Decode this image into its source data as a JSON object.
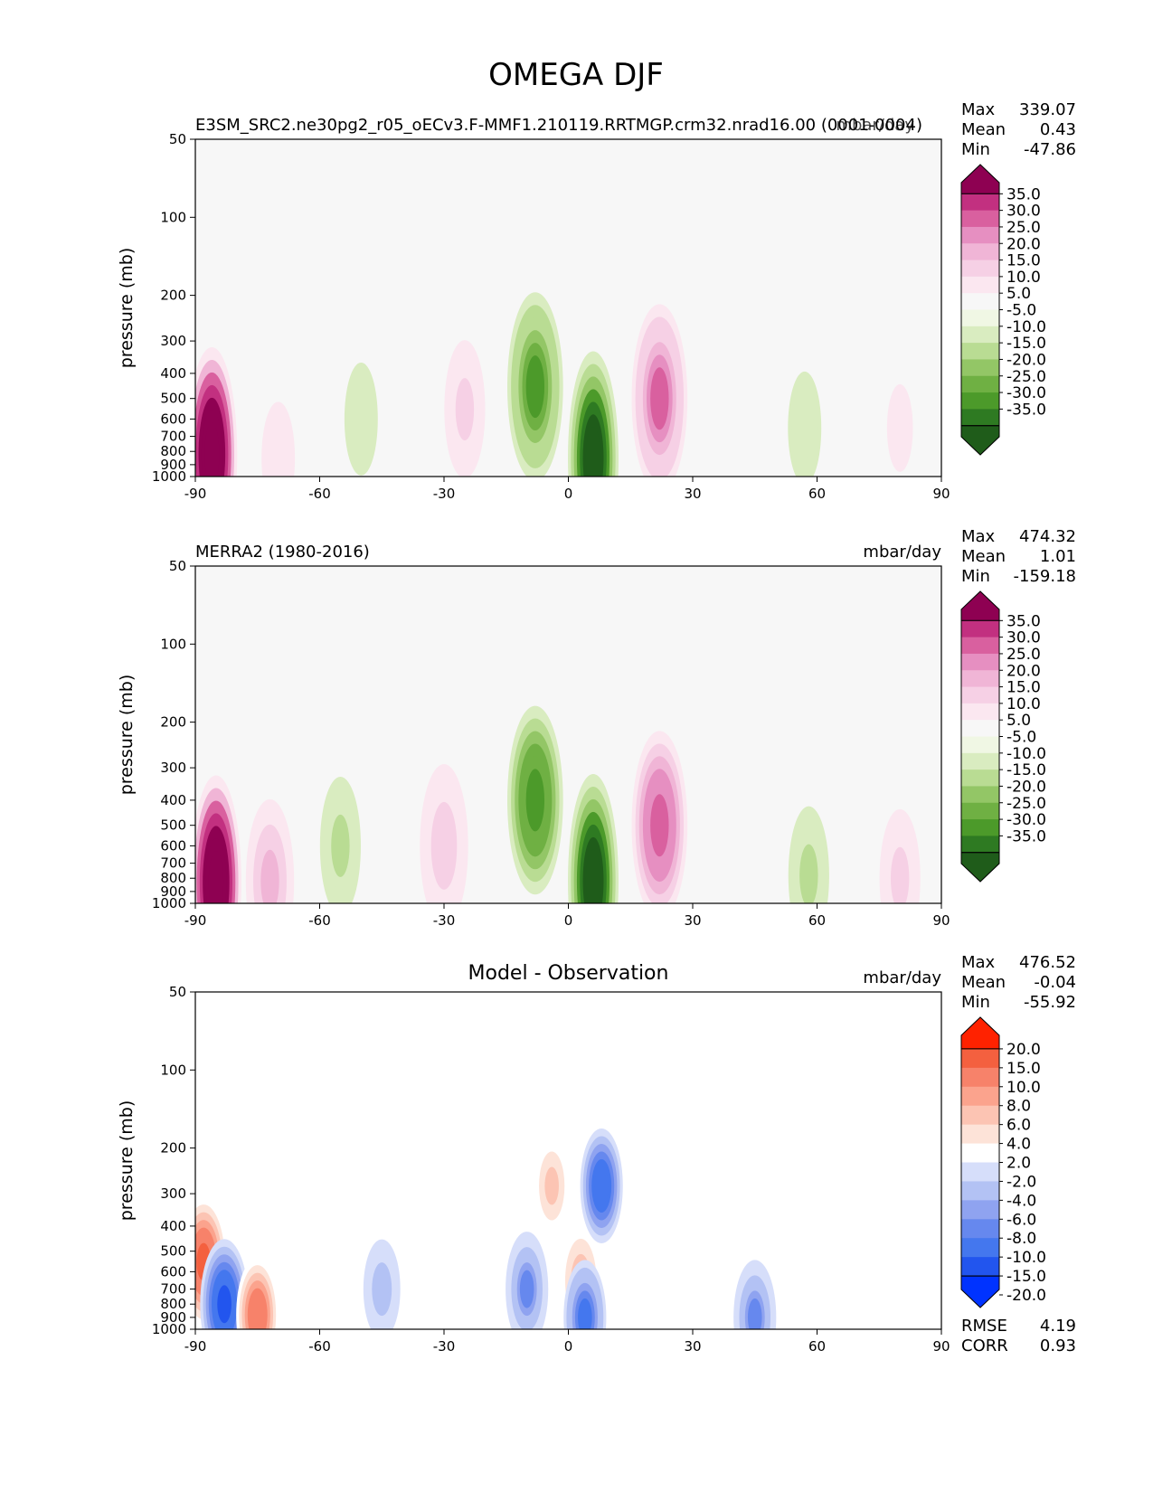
{
  "figure_title": "OMEGA DJF",
  "shared": {
    "ylabel": "pressure (mb)",
    "yticks": [
      50,
      100,
      200,
      300,
      400,
      500,
      600,
      700,
      800,
      900,
      1000
    ],
    "xticks": [
      -90,
      -60,
      -30,
      0,
      30,
      60,
      90
    ],
    "xlim": [
      -90,
      90
    ],
    "ylim": [
      1000,
      50
    ]
  },
  "colors": {
    "diverging_main": [
      "#1f5c1a",
      "#2e7a22",
      "#4c9a2a",
      "#6fb043",
      "#93c666",
      "#b9dc93",
      "#d9ecc0",
      "#f0f7e4",
      "#f7f7f7",
      "#fbe7f0",
      "#f6d0e5",
      "#f0b5d6",
      "#e68fc1",
      "#d9609f",
      "#c23080",
      "#8e0152"
    ],
    "diverging_diff": [
      "#0033ff",
      "#2255ee",
      "#4477ee",
      "#6688ee",
      "#8fa3f0",
      "#b3c2f4",
      "#d6defa",
      "#ffffff",
      "#fde3d8",
      "#fcc4b3",
      "#fba38d",
      "#f7826a",
      "#f4603f",
      "#ff2200"
    ]
  },
  "chart_data": [
    {
      "type": "heatmap",
      "panel": "model",
      "title": "E3SM_SRC2.ne30pg2_r05_oECv3.F-MMF1.210119.RRTMGP.crm32.nrad16.00 (0001-0004)",
      "units": "mbar/day",
      "stats": {
        "Max": "339.07",
        "Mean": "0.43",
        "Min": "-47.86"
      },
      "colorbar_labels": [
        "35.0",
        "30.0",
        "25.0",
        "20.0",
        "15.0",
        "10.0",
        "5.0",
        "-5.0",
        "-10.0",
        "-15.0",
        "-20.0",
        "-25.0",
        "-30.0",
        "-35.0"
      ],
      "xlabel": "",
      "ylabel": "pressure (mb)",
      "features": [
        {
          "lat": -86,
          "p": 820,
          "value": 60
        },
        {
          "lat": -70,
          "p": 850,
          "value": 8
        },
        {
          "lat": -50,
          "p": 600,
          "value": -7
        },
        {
          "lat": -25,
          "p": 550,
          "value": 10
        },
        {
          "lat": -8,
          "p": 450,
          "value": -25
        },
        {
          "lat": 6,
          "p": 850,
          "value": -45
        },
        {
          "lat": 22,
          "p": 500,
          "value": 25
        },
        {
          "lat": 57,
          "p": 650,
          "value": -8
        },
        {
          "lat": 80,
          "p": 650,
          "value": 6
        }
      ]
    },
    {
      "type": "heatmap",
      "panel": "obs",
      "title": "MERRA2 (1980-2016)",
      "units": "mbar/day",
      "stats": {
        "Max": "474.32",
        "Mean": "1.01",
        "Min": "-159.18"
      },
      "colorbar_labels": [
        "35.0",
        "30.0",
        "25.0",
        "20.0",
        "15.0",
        "10.0",
        "5.0",
        "-5.0",
        "-10.0",
        "-15.0",
        "-20.0",
        "-25.0",
        "-30.0",
        "-35.0"
      ],
      "xlabel": "",
      "ylabel": "pressure (mb)",
      "features": [
        {
          "lat": -85,
          "p": 830,
          "value": 60
        },
        {
          "lat": -72,
          "p": 820,
          "value": 15
        },
        {
          "lat": -55,
          "p": 600,
          "value": -10
        },
        {
          "lat": -30,
          "p": 600,
          "value": 12
        },
        {
          "lat": -8,
          "p": 400,
          "value": -28
        },
        {
          "lat": 6,
          "p": 820,
          "value": -45
        },
        {
          "lat": 22,
          "p": 500,
          "value": 28
        },
        {
          "lat": 58,
          "p": 780,
          "value": -10
        },
        {
          "lat": 80,
          "p": 800,
          "value": 10
        }
      ]
    },
    {
      "type": "heatmap",
      "panel": "diff",
      "title": "Model - Observation",
      "units": "mbar/day",
      "stats": {
        "Max": "476.52",
        "Mean": "-0.04",
        "Min": "-55.92"
      },
      "colorbar_labels": [
        "20.0",
        "15.0",
        "10.0",
        "8.0",
        "6.0",
        "4.0",
        "2.0",
        "-2.0",
        "-4.0",
        "-6.0",
        "-8.0",
        "-10.0",
        "-15.0",
        "-20.0"
      ],
      "footer_stats": {
        "RMSE": "4.19",
        "CORR": "0.93"
      },
      "xlabel": "",
      "ylabel": "pressure (mb)",
      "features": [
        {
          "lat": -88,
          "p": 550,
          "value": 15
        },
        {
          "lat": -83,
          "p": 800,
          "value": -15
        },
        {
          "lat": -75,
          "p": 880,
          "value": 12
        },
        {
          "lat": -45,
          "p": 700,
          "value": -5
        },
        {
          "lat": -10,
          "p": 700,
          "value": -8
        },
        {
          "lat": 3,
          "p": 650,
          "value": 8
        },
        {
          "lat": -4,
          "p": 280,
          "value": 6
        },
        {
          "lat": 8,
          "p": 280,
          "value": -12
        },
        {
          "lat": 4,
          "p": 900,
          "value": -10
        },
        {
          "lat": 45,
          "p": 900,
          "value": -8
        },
        {
          "lat": 60,
          "p": 350,
          "value": 3
        }
      ]
    }
  ]
}
